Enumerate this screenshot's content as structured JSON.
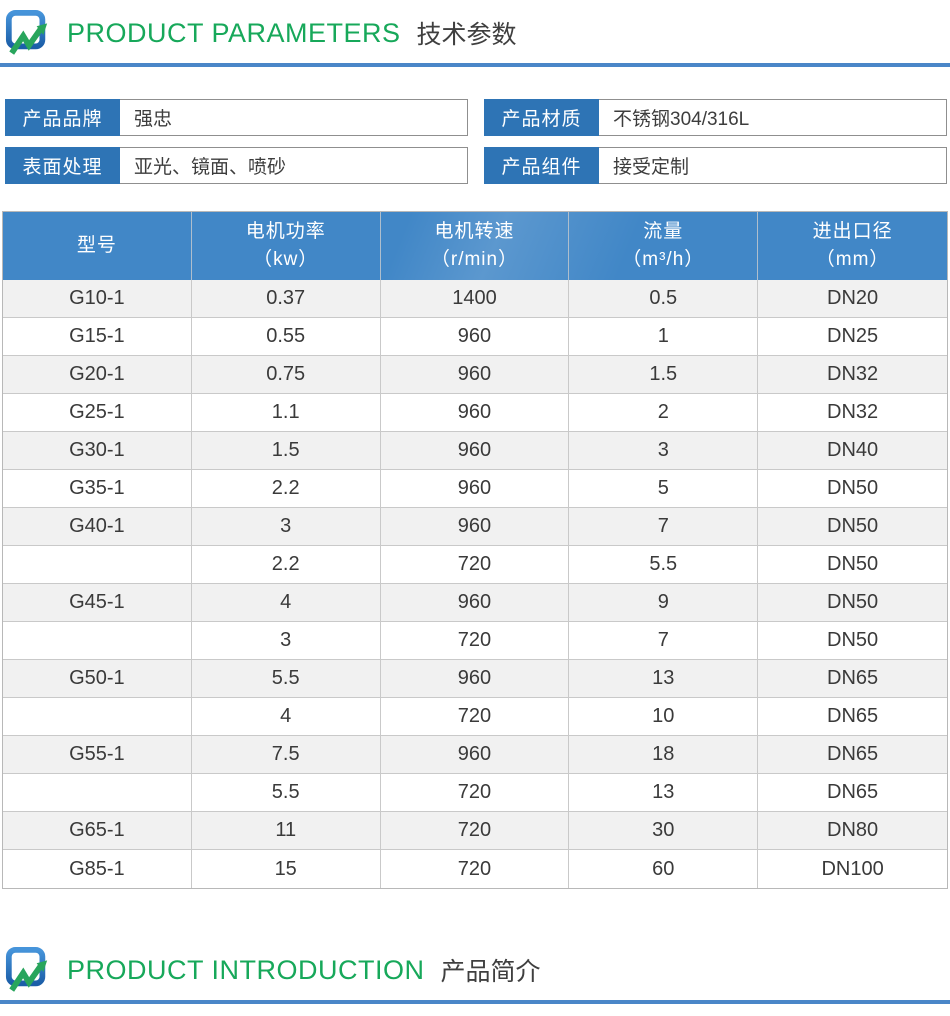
{
  "sections": {
    "parameters": {
      "title_en": "PRODUCT PARAMETERS",
      "title_zh": "技术参数"
    },
    "introduction": {
      "title_en": "PRODUCT INTRODUCTION",
      "title_zh": "产品简介"
    }
  },
  "fields": [
    {
      "label": "产品品牌",
      "value": "强忠"
    },
    {
      "label": "产品材质",
      "value": "不锈钢304/316L"
    },
    {
      "label": "表面处理",
      "value": "亚光、镜面、喷砂"
    },
    {
      "label": "产品组件",
      "value": "接受定制"
    }
  ],
  "table": {
    "columns": [
      {
        "title": "型号",
        "sub": ""
      },
      {
        "title": "电机功率",
        "sub": "（kw）"
      },
      {
        "title": "电机转速",
        "sub": "（r/min）"
      },
      {
        "title": "流量",
        "sub": "（m³/h）"
      },
      {
        "title": "进出口径",
        "sub": "（mm）"
      }
    ],
    "rows": [
      [
        "G10-1",
        "0.37",
        "1400",
        "0.5",
        "DN20"
      ],
      [
        "G15-1",
        "0.55",
        "960",
        "1",
        "DN25"
      ],
      [
        "G20-1",
        "0.75",
        "960",
        "1.5",
        "DN32"
      ],
      [
        "G25-1",
        "1.1",
        "960",
        "2",
        "DN32"
      ],
      [
        "G30-1",
        "1.5",
        "960",
        "3",
        "DN40"
      ],
      [
        "G35-1",
        "2.2",
        "960",
        "5",
        "DN50"
      ],
      [
        "G40-1",
        "3",
        "960",
        "7",
        "DN50"
      ],
      [
        "",
        "2.2",
        "720",
        "5.5",
        "DN50"
      ],
      [
        "G45-1",
        "4",
        "960",
        "9",
        "DN50"
      ],
      [
        "",
        "3",
        "720",
        "7",
        "DN50"
      ],
      [
        "G50-1",
        "5.5",
        "960",
        "13",
        "DN65"
      ],
      [
        "",
        "4",
        "720",
        "10",
        "DN65"
      ],
      [
        "G55-1",
        "7.5",
        "960",
        "18",
        "DN65"
      ],
      [
        "",
        "5.5",
        "720",
        "13",
        "DN65"
      ],
      [
        "G65-1",
        "11",
        "720",
        "30",
        "DN80"
      ],
      [
        "G85-1",
        "15",
        "720",
        "60",
        "DN100"
      ]
    ]
  },
  "icons": {
    "logo": "monitor-green-arrow-logo"
  },
  "colors": {
    "label_blue": "#2e74b5",
    "table_header_blue": "#4187c7",
    "divider_blue": "#4a86c8",
    "title_green": "#17a85a",
    "row_alt_gray": "#f1f1f1",
    "border_gray": "#c9c9c9"
  }
}
